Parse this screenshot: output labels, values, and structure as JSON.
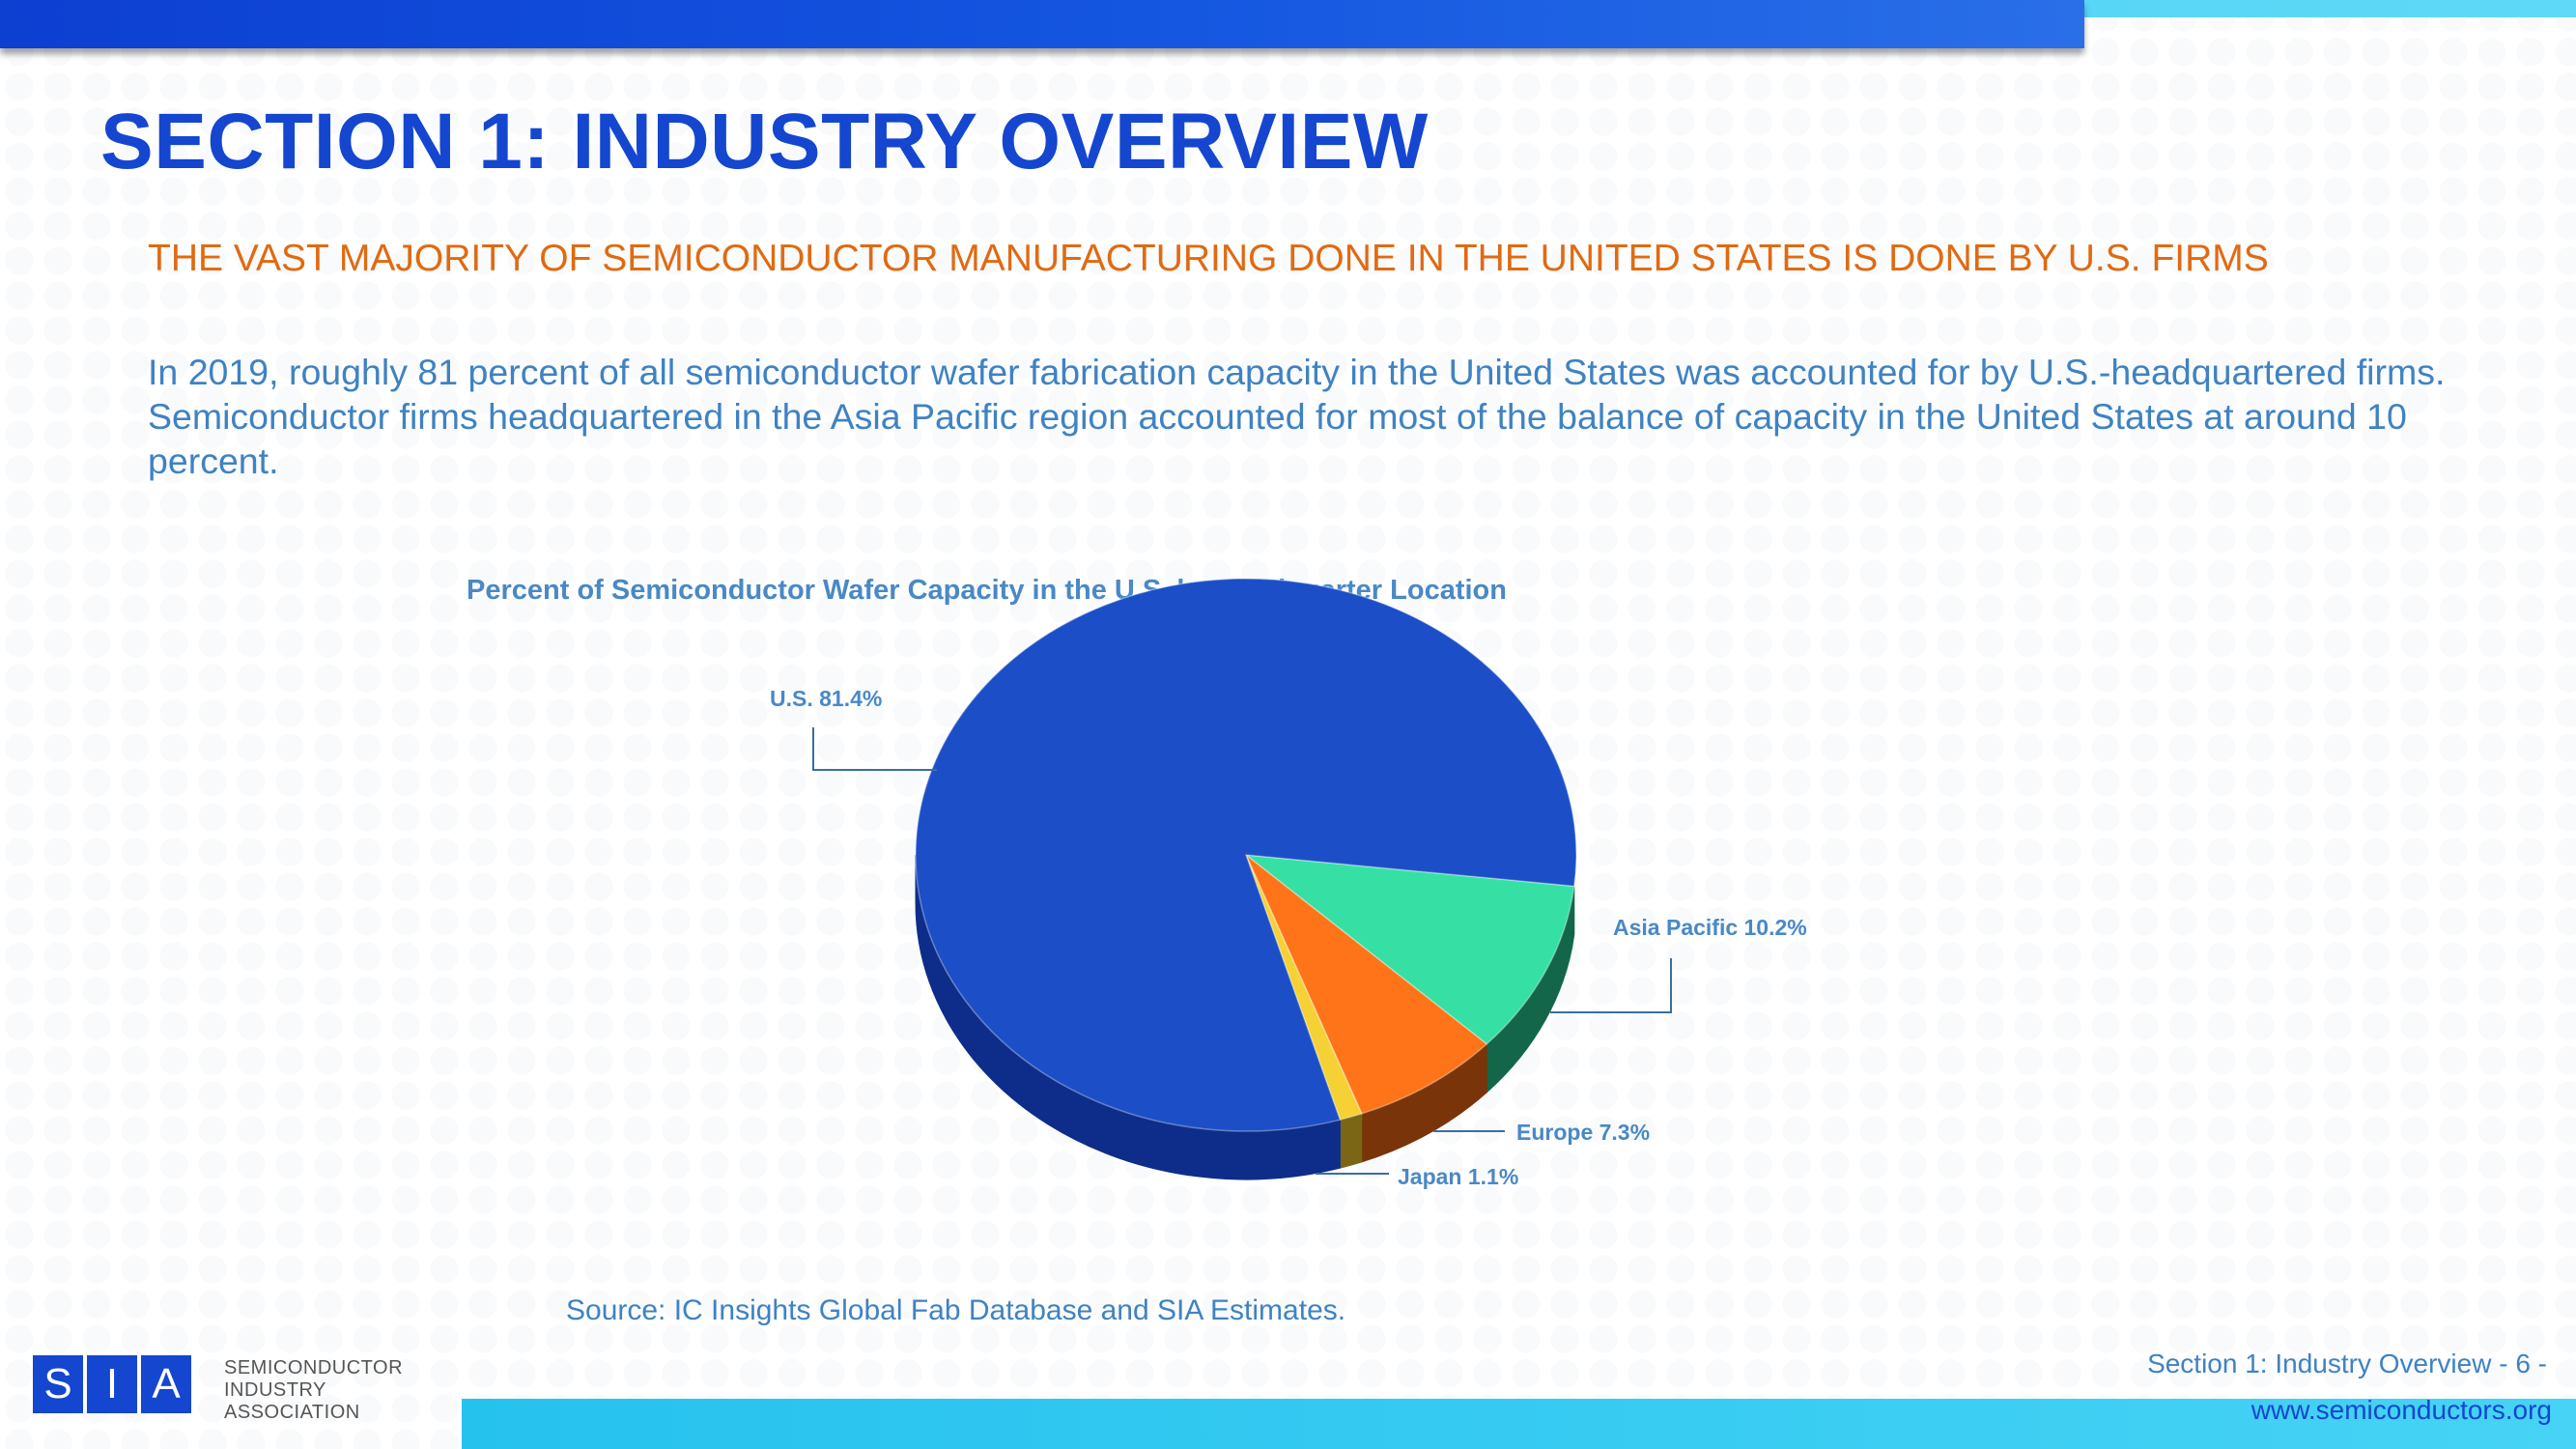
{
  "header": {
    "title": "SECTION 1: INDUSTRY OVERVIEW",
    "subtitle": "THE VAST MAJORITY OF SEMICONDUCTOR MANUFACTURING DONE IN THE UNITED STATES IS DONE BY U.S. FIRMS"
  },
  "body": {
    "paragraph": "In 2019, roughly 81 percent of all semiconductor wafer fabrication capacity in the United States was accounted for by U.S.-headquartered firms. Semiconductor firms headquartered in the Asia Pacific region accounted for most of the balance of capacity in the United States at around 10 percent."
  },
  "chart_data": {
    "type": "pie",
    "title": "Percent of Semiconductor Wafer Capacity in the U.S. by Headquarter Location",
    "three_d": true,
    "slices": [
      {
        "label": "U.S. 81.4%",
        "name": "U.S.",
        "value": 81.4,
        "color": "#1c4fc7",
        "side": "#0e2d8a"
      },
      {
        "label": "Asia Pacific 10.2%",
        "name": "Asia Pacific",
        "value": 10.2,
        "color": "#36e0a4",
        "side": "#13664a"
      },
      {
        "label": "Europe 7.3%",
        "name": "Europe",
        "value": 7.3,
        "color": "#ff7418",
        "side": "#7a340a"
      },
      {
        "label": "Japan 1.1%",
        "name": "Japan",
        "value": 1.1,
        "color": "#f5d135",
        "side": "#7a6615"
      }
    ],
    "source": "Source: IC Insights Global Fab Database and SIA Estimates."
  },
  "footer": {
    "section_label": "Section 1: Industry Overview - 6 -",
    "url": "www.semiconductors.org",
    "logo_letters": [
      "S",
      "I",
      "A"
    ],
    "logo_lines": [
      "SEMICONDUCTOR",
      "INDUSTRY",
      "ASSOCIATION"
    ]
  },
  "colors": {
    "title": "#1446cf",
    "subtitle": "#e06a12",
    "text": "#3f82c2",
    "bar_blue": "#0d3fd1",
    "bar_cyan": "#3bc8f0"
  }
}
